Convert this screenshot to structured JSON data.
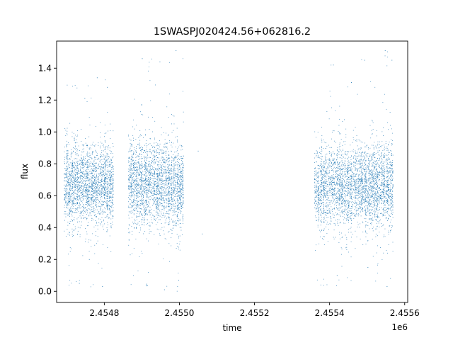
{
  "chart_data": {
    "type": "scatter",
    "title": "1SWASPJ020424.56+062816.2",
    "xlabel": "time",
    "ylabel": "flux",
    "x_offset_label": "1e6",
    "xlim": [
      2454673,
      2455608
    ],
    "ylim": [
      -0.07,
      1.57
    ],
    "x_ticks": [
      {
        "value": 2454800,
        "label": "2.4548"
      },
      {
        "value": 2455000,
        "label": "2.4550"
      },
      {
        "value": 2455200,
        "label": "2.4552"
      },
      {
        "value": 2455400,
        "label": "2.4554"
      },
      {
        "value": 2455600,
        "label": "2.4556"
      }
    ],
    "y_ticks": [
      {
        "value": 0.0,
        "label": "0.0"
      },
      {
        "value": 0.2,
        "label": "0.2"
      },
      {
        "value": 0.4,
        "label": "0.4"
      },
      {
        "value": 0.6,
        "label": "0.6"
      },
      {
        "value": 0.8,
        "label": "0.8"
      },
      {
        "value": 1.0,
        "label": "1.0"
      },
      {
        "value": 1.2,
        "label": "1.2"
      },
      {
        "value": 1.4,
        "label": "1.4"
      }
    ],
    "grid": false,
    "legend": "none",
    "series": [
      {
        "color": "#1f77b4",
        "observing_seasons": [
          {
            "x_range": [
              2454693,
              2454825
            ],
            "flux_median": 0.68,
            "flux_spread": 0.12,
            "flux_min": 0.02,
            "flux_max": 1.34
          },
          {
            "x_range": [
              2454864,
              2455012
            ],
            "flux_median": 0.67,
            "flux_spread": 0.13,
            "flux_min": 0.0,
            "flux_max": 1.5
          },
          {
            "x_range": [
              2455360,
              2455570
            ],
            "flux_median": 0.66,
            "flux_spread": 0.13,
            "flux_min": 0.03,
            "flux_max": 1.51
          }
        ],
        "points": [
          [
            2454699.0,
            0.62
          ],
          [
            2454712.0,
            0.71
          ],
          [
            2454725.0,
            0.95
          ],
          [
            2454733.5,
            0.05
          ],
          [
            2454748.0,
            1.21
          ],
          [
            2454760.0,
            0.2
          ],
          [
            2454781.0,
            1.34
          ],
          [
            2454795.0,
            0.03
          ],
          [
            2454808.0,
            1.28
          ],
          [
            2454818.0,
            0.41
          ],
          [
            2454901.0,
            1.46
          ],
          [
            2454912.0,
            0.04
          ],
          [
            2454948.0,
            1.44
          ],
          [
            2454960.0,
            0.01
          ],
          [
            2454991.0,
            1.51
          ],
          [
            2454998.0,
            0.07
          ],
          [
            2455050.0,
            0.88
          ],
          [
            2455061.0,
            0.36
          ],
          [
            2455410.0,
            1.42
          ],
          [
            2455420.0,
            0.1
          ],
          [
            2455458.0,
            1.31
          ],
          [
            2455493.0,
            1.45
          ],
          [
            2455502.0,
            0.15
          ],
          [
            2455548.0,
            1.51
          ],
          [
            2455553.0,
            0.03
          ],
          [
            2455566.0,
            1.45
          ]
        ]
      }
    ]
  }
}
